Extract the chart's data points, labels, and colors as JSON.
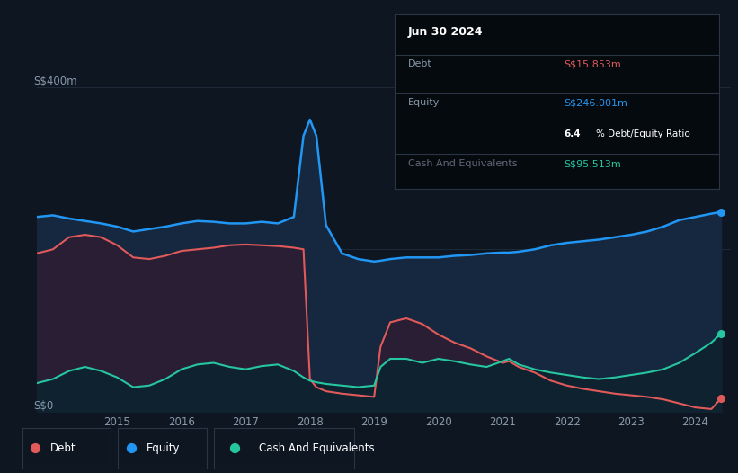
{
  "bg_color": "#0e1621",
  "plot_bg_color": "#0e1621",
  "grid_color": "#1e2a3a",
  "ylabel_text": "S$400m",
  "ylabel_zero": "S$0",
  "equity_color": "#2196f3",
  "debt_color": "#e05a5a",
  "cash_color": "#26c6a0",
  "tooltip_bg": "#050a0f",
  "tooltip_border": "#2a3545",
  "tooltip_title": "Jun 30 2024",
  "tooltip_debt_label": "Debt",
  "tooltip_debt_value": "S$15.853m",
  "tooltip_equity_label": "Equity",
  "tooltip_equity_value": "S$246.001m",
  "tooltip_ratio": "6.4% Debt/Equity Ratio",
  "tooltip_cash_label": "Cash And Equivalents",
  "tooltip_cash_value": "S$95.513m",
  "legend_debt": "Debt",
  "legend_equity": "Equity",
  "legend_cash": "Cash And Equivalents",
  "years": [
    2013.75,
    2014.0,
    2014.25,
    2014.5,
    2014.75,
    2015.0,
    2015.25,
    2015.5,
    2015.75,
    2016.0,
    2016.25,
    2016.5,
    2016.75,
    2017.0,
    2017.25,
    2017.5,
    2017.75,
    2017.9,
    2018.0,
    2018.1,
    2018.25,
    2018.5,
    2018.75,
    2019.0,
    2019.1,
    2019.25,
    2019.5,
    2019.75,
    2020.0,
    2020.25,
    2020.5,
    2020.75,
    2021.0,
    2021.1,
    2021.25,
    2021.5,
    2021.75,
    2022.0,
    2022.25,
    2022.5,
    2022.75,
    2023.0,
    2023.25,
    2023.5,
    2023.75,
    2024.0,
    2024.25,
    2024.4
  ],
  "equity": [
    240,
    242,
    238,
    235,
    232,
    228,
    222,
    225,
    228,
    232,
    235,
    234,
    232,
    232,
    234,
    232,
    240,
    340,
    360,
    340,
    230,
    195,
    188,
    185,
    186,
    188,
    190,
    190,
    190,
    192,
    193,
    195,
    196,
    196,
    197,
    200,
    205,
    208,
    210,
    212,
    215,
    218,
    222,
    228,
    236,
    240,
    244,
    246
  ],
  "debt": [
    195,
    200,
    215,
    218,
    215,
    205,
    190,
    188,
    192,
    198,
    200,
    202,
    205,
    206,
    205,
    204,
    202,
    200,
    40,
    30,
    25,
    22,
    20,
    18,
    80,
    110,
    115,
    108,
    95,
    85,
    78,
    68,
    60,
    62,
    55,
    48,
    38,
    32,
    28,
    25,
    22,
    20,
    18,
    15,
    10,
    5,
    3,
    16
  ],
  "cash": [
    35,
    40,
    50,
    55,
    50,
    42,
    30,
    32,
    40,
    52,
    58,
    60,
    55,
    52,
    56,
    58,
    50,
    42,
    38,
    36,
    34,
    32,
    30,
    32,
    55,
    65,
    65,
    60,
    65,
    62,
    58,
    55,
    62,
    65,
    58,
    52,
    48,
    45,
    42,
    40,
    42,
    45,
    48,
    52,
    60,
    72,
    85,
    96
  ]
}
